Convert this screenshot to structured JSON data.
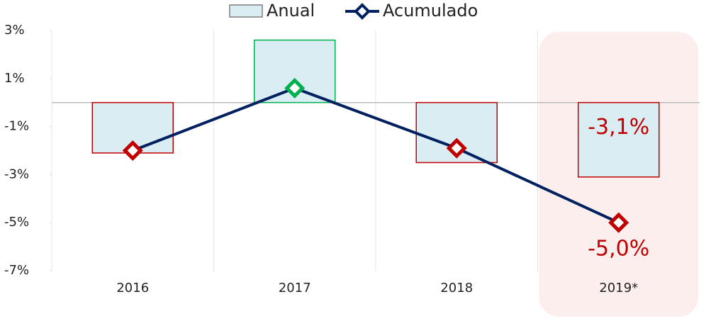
{
  "chart_data": {
    "type": "bar-line",
    "categories": [
      "2016",
      "2017",
      "2018",
      "2019*"
    ],
    "series": [
      {
        "name": "Anual",
        "type": "bar",
        "color": "#daedf3",
        "positive_color": "#00b050",
        "negative_color": "#c00000",
        "values": [
          -2.1,
          2.6,
          -2.5,
          -3.1
        ],
        "value_labels": [
          null,
          null,
          null,
          "-3,1%"
        ]
      },
      {
        "name": "Acumulado",
        "type": "line",
        "color": "#002060",
        "positive_color": "#00b050",
        "negative_color": "#c00000",
        "values": [
          -2.0,
          0.6,
          -1.9,
          -5.0
        ],
        "value_labels": [
          null,
          null,
          null,
          "-5,0%"
        ]
      }
    ],
    "highlight_category": 3,
    "highlight_color": "#fbeeed",
    "value_label_color": "#c00000",
    "ylim": [
      -7,
      3
    ],
    "yticks": [
      {
        "value": -7,
        "label": "-7%"
      },
      {
        "value": -5,
        "label": "-5%"
      },
      {
        "value": -3,
        "label": "-3%"
      },
      {
        "value": -1,
        "label": "-1%"
      },
      {
        "value": 1,
        "label": "1%"
      },
      {
        "value": 3,
        "label": "3%"
      }
    ],
    "grid": true,
    "legend": "top"
  }
}
